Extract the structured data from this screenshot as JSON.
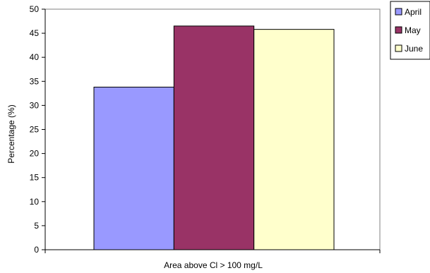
{
  "chart_data": {
    "type": "bar",
    "categories": [
      "Area above Cl > 100 mg/L"
    ],
    "series": [
      {
        "name": "April",
        "values": [
          33.8
        ],
        "color": "#9999ff"
      },
      {
        "name": "May",
        "values": [
          46.5
        ],
        "color": "#993366"
      },
      {
        "name": "June",
        "values": [
          45.8
        ],
        "color": "#ffffcc"
      }
    ],
    "title": "",
    "xlabel": "Area above Cl > 100 mg/L",
    "ylabel": "Percentage (%)",
    "ylim": [
      0,
      50
    ],
    "yticks": [
      0,
      5,
      10,
      15,
      20,
      25,
      30,
      35,
      40,
      45,
      50
    ],
    "grid": false,
    "legend_position": "top-right"
  }
}
